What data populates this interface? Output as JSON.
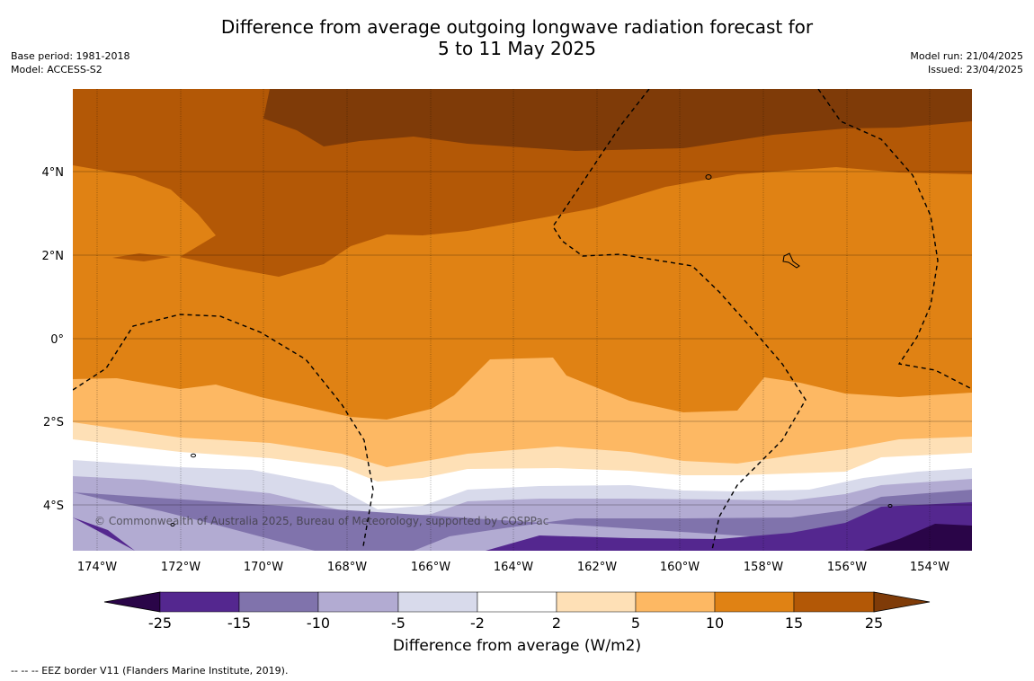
{
  "title": {
    "line1": "Difference from average outgoing longwave radiation forecast for",
    "line2": "5 to 11 May 2025"
  },
  "meta_left": {
    "base_period": "Base period: 1981-2018",
    "model": "Model: ACCESS-S2"
  },
  "meta_right": {
    "model_run": "Model run: 21/04/2025",
    "issued": "Issued: 23/04/2025"
  },
  "map": {
    "lat_labels": [
      "4°N",
      "2°N",
      "0°",
      "2°S",
      "4°S"
    ],
    "lon_labels": [
      "174°W",
      "172°W",
      "170°W",
      "168°W",
      "166°W",
      "164°W",
      "162°W",
      "160°W",
      "158°W",
      "156°W",
      "154°W"
    ],
    "copyright": "© Commonwealth of Australia 2025, Bureau of Meteorology, supported by COSPPac"
  },
  "colorbar": {
    "ticks": [
      "-25",
      "-15",
      "-10",
      "-5",
      "-2",
      "2",
      "5",
      "10",
      "15",
      "25"
    ],
    "colors": [
      "#2a0548",
      "#54278f",
      "#8073ac",
      "#b2abd2",
      "#d8daeb",
      "#ffffff",
      "#fee0b6",
      "#fdb863",
      "#e08214",
      "#b35806",
      "#7f3b08"
    ],
    "label": "Difference from average (W/m2)"
  },
  "footer": "-- -- -- EEZ border V11 (Flanders Marine Institute, 2019)."
}
